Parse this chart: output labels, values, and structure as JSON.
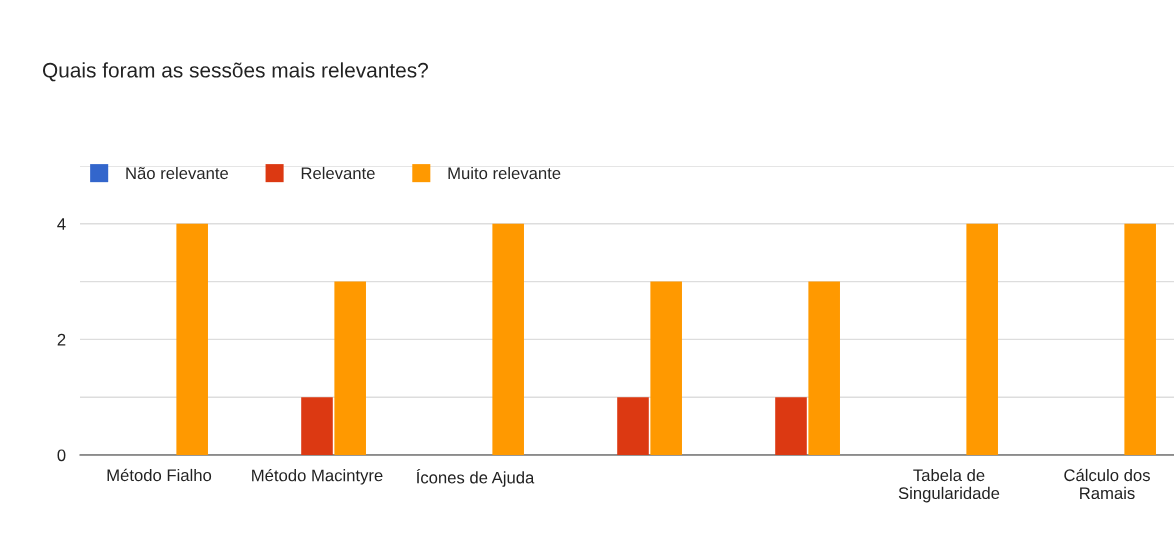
{
  "chart_data": {
    "type": "bar",
    "title": "Quais foram as sessões mais relevantes?",
    "categories": [
      "Método Fialho",
      "Método Macintyre",
      "Ícones de Ajuda",
      null,
      null,
      "Tabela de\nSingularidade",
      "Cálculo dos\nRamais"
    ],
    "series": [
      {
        "name": "Não relevante",
        "color": "#3366cc",
        "values": [
          0,
          0,
          0,
          0,
          0,
          0,
          0
        ]
      },
      {
        "name": "Relevante",
        "color": "#dc3912",
        "values": [
          0,
          1,
          0,
          1,
          1,
          0,
          0
        ]
      },
      {
        "name": "Muito relevante",
        "color": "#ff9900",
        "values": [
          4,
          3,
          4,
          3,
          3,
          4,
          4
        ]
      }
    ],
    "ylim": [
      0,
      5
    ],
    "yticks": [
      0,
      {
        "value": 1,
        "label": null
      },
      2,
      {
        "value": 3,
        "label": null
      },
      4,
      {
        "value": 5,
        "label": null
      }
    ],
    "grid": "y",
    "legend": "top left"
  }
}
